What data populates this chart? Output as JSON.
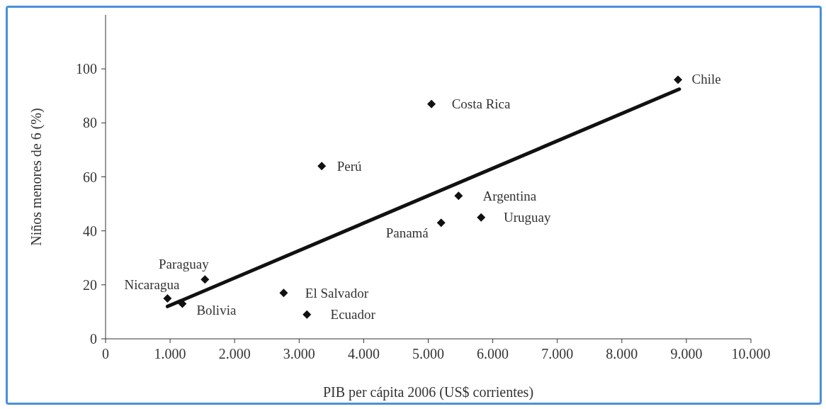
{
  "chart_data": {
    "type": "scatter",
    "xlabel": "PIB per cápita 2006 (US$ corrientes)",
    "ylabel": "Niños menores de 6 (%)",
    "xlim": [
      0,
      10000
    ],
    "ylim": [
      0,
      120
    ],
    "xticks": [
      0,
      {
        "value": 1000,
        "label": "1.000"
      },
      {
        "value": 2000,
        "label": "2.000"
      },
      {
        "value": 3000,
        "label": "3.000"
      },
      {
        "value": 4000,
        "label": "4.000"
      },
      {
        "value": 5000,
        "label": "5.000"
      },
      {
        "value": 6000,
        "label": "6.000"
      },
      {
        "value": 7000,
        "label": "7.000"
      },
      {
        "value": 8000,
        "label": "8.000"
      },
      {
        "value": 9000,
        "label": "9.000"
      },
      {
        "value": 10000,
        "label": "10.000"
      }
    ],
    "yticks": [
      0,
      20,
      40,
      60,
      80,
      100
    ],
    "grid": false,
    "legend": false,
    "marker": "diamond",
    "series": [
      {
        "color": "#111111",
        "x": [
          960,
          1190,
          1540,
          2760,
          3120,
          3350,
          5050,
          5200,
          5470,
          5820,
          8870
        ],
        "values": [
          15,
          13,
          22,
          17,
          9,
          64,
          87,
          43,
          53,
          45,
          96
        ]
      },
      {
        "type": "line",
        "color": "#111111",
        "line_style": "solid",
        "marker": "none",
        "x": [
          960,
          8890
        ],
        "values": [
          12,
          92.5
        ]
      }
    ],
    "annotations": [
      {
        "text": "Nicaragua",
        "x": 960,
        "y": 15
      },
      {
        "text": "Bolivia",
        "x": 1190,
        "y": 13
      },
      {
        "text": "Paraguay",
        "x": 1540,
        "y": 22
      },
      {
        "text": "El Salvador",
        "x": 2760,
        "y": 17
      },
      {
        "text": "Ecuador",
        "x": 3120,
        "y": 9
      },
      {
        "text": "Perú",
        "x": 3350,
        "y": 64
      },
      {
        "text": "Costa Rica",
        "x": 5050,
        "y": 87
      },
      {
        "text": "Panamá",
        "x": 5200,
        "y": 43
      },
      {
        "text": "Argentina",
        "x": 5470,
        "y": 53
      },
      {
        "text": "Uruguay",
        "x": 5820,
        "y": 45
      },
      {
        "text": "Chile",
        "x": 8870,
        "y": 96
      }
    ]
  }
}
